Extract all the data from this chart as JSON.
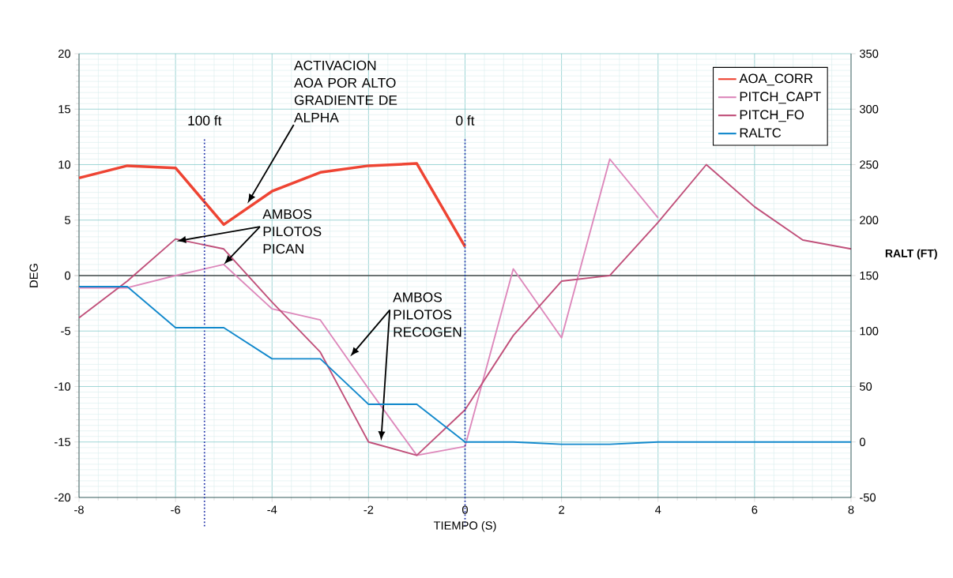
{
  "chart_data": {
    "type": "line",
    "xlabel": "TIEMPO (S)",
    "ylabel": "DEG",
    "y2label": "RALT (FT)",
    "x": [
      -8,
      -7,
      -6,
      -5,
      -4,
      -3,
      -2,
      -1,
      0,
      1,
      2,
      3,
      4,
      5,
      6,
      7,
      8
    ],
    "xlim": [
      -8,
      8
    ],
    "xticks": [
      -8,
      -6,
      -4,
      -2,
      0,
      2,
      4,
      6,
      8
    ],
    "ylim": [
      -20,
      20
    ],
    "yticks": [
      -20,
      -15,
      -10,
      -5,
      0,
      5,
      10,
      15,
      20
    ],
    "y2lim": [
      -50,
      350
    ],
    "y2ticks": [
      -50,
      0,
      50,
      100,
      150,
      200,
      250,
      300,
      350
    ],
    "grid": true,
    "legend": "top right",
    "line_style": "solid",
    "series": [
      {
        "name": "AOA_CORR",
        "color": "#ee4433",
        "x": [
          -8,
          -7,
          -6,
          -5,
          -4,
          -3,
          -2,
          -1,
          0
        ],
        "values": [
          8.8,
          9.9,
          9.7,
          4.6,
          7.6,
          9.3,
          9.9,
          10.1,
          2.6
        ]
      },
      {
        "name": "PITCH_CAPT",
        "color": "#dd88bb",
        "values": [
          -1.1,
          -1.1,
          0,
          1.0,
          -3.0,
          -4.0,
          -10.2,
          -16.2,
          -15.4,
          0.6,
          -5.6,
          10.5,
          5.2,
          null,
          null,
          null,
          null
        ]
      },
      {
        "name": "PITCH_FO",
        "color": "#c0507a",
        "values": [
          -3.8,
          -0.5,
          3.3,
          2.4,
          -2.4,
          -6.9,
          -15.0,
          -16.2,
          -12.1,
          -5.4,
          -0.5,
          0,
          4.8,
          10.0,
          6.2,
          3.2,
          2.4
        ]
      },
      {
        "name": "RALTC",
        "color": "#1188cc",
        "axis": "y2",
        "values": [
          140,
          140,
          103,
          103,
          75,
          75,
          34,
          34,
          0,
          0,
          -2,
          -2,
          0,
          0,
          0,
          0,
          0
        ]
      }
    ],
    "ref_lines": [
      {
        "axis": "x",
        "value": -5.4,
        "label": "100 ft",
        "color": "#2233aa",
        "line_style": "dotted"
      },
      {
        "axis": "x",
        "value": 0,
        "label": "0 ft",
        "color": "#2233aa",
        "line_style": "dotted"
      }
    ],
    "annotations": [
      "ACTIVACION AOA POR ALTO GRADIENTE DE ALPHA",
      {
        "text": "AMBOS PILOTOS PICAN",
        "x": -5,
        "y": 1.0
      },
      "AMBOS PILOTOS RECOGEN"
    ]
  }
}
